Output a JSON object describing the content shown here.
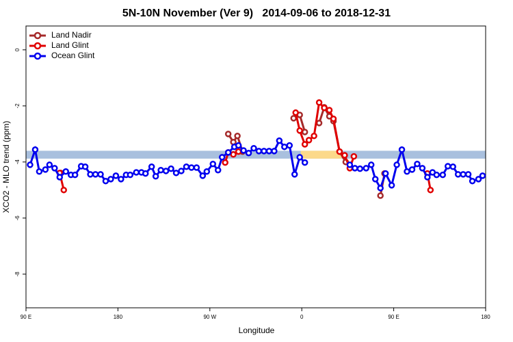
{
  "chart_data": {
    "type": "line",
    "title": "5N-10N November (Ver 9)   2014-09-06 to 2018-12-31",
    "x_label": "Longitude",
    "y_label": "XCO2 - MLO trend (ppm)",
    "xlim": [
      90,
      540
    ],
    "xticks": [
      {
        "value": 90,
        "label": "90 E"
      },
      {
        "value": 180,
        "label": "180"
      },
      {
        "value": 270,
        "label": "90 W"
      },
      {
        "value": 360,
        "label": "0"
      },
      {
        "value": 450,
        "label": "90 E"
      },
      {
        "value": 540,
        "label": "180"
      }
    ],
    "ylim": [
      -9.2,
      0.85
    ],
    "yticks": [
      0,
      -2,
      -4,
      -6,
      -8
    ],
    "legend": "top-left",
    "band": {
      "ymin": -3.88,
      "ymax": -3.6,
      "color": "#a9c0de",
      "highlight_color": "#fcd98a",
      "highlight_x": [
        359,
        399
      ]
    },
    "series": [
      {
        "name": "Land Nadir",
        "color": "#a52a2a",
        "x": [
          124,
          null,
          288,
          293,
          297,
          302,
          null,
          352,
          358,
          363,
          null,
          377,
          382,
          387,
          391,
          397,
          403,
          null,
          437,
          441
        ],
        "values": [
          -4.39,
          null,
          -3.0,
          -3.29,
          -3.07,
          -3.63,
          null,
          -2.44,
          -2.32,
          -2.93,
          null,
          -2.61,
          -2.05,
          -2.37,
          -2.54,
          -3.63,
          -4.0,
          null,
          -5.2,
          -4.41
        ]
      },
      {
        "name": "Land Glint",
        "color": "#e00000",
        "x": [
          123,
          127,
          null,
          285,
          288,
          293,
          298,
          null,
          354,
          358,
          363,
          367,
          372,
          377,
          382,
          387,
          391,
          397,
          402,
          407,
          411,
          null,
          483,
          486
        ],
        "values": [
          -4.39,
          -5.0,
          null,
          -4.02,
          -3.66,
          -3.73,
          -3.63,
          null,
          -2.24,
          -2.88,
          -3.37,
          -3.22,
          -3.07,
          -1.88,
          -2.07,
          -2.15,
          -2.46,
          -3.63,
          -3.76,
          -4.22,
          -3.8,
          null,
          -4.41,
          -5.0
        ]
      },
      {
        "name": "Ocean Glint",
        "color": "#0000ee",
        "x": [
          94,
          99,
          103,
          109,
          113,
          118,
          123,
          129,
          134,
          138,
          144,
          148,
          153,
          158,
          163,
          168,
          173,
          178,
          183,
          188,
          192,
          198,
          203,
          207,
          213,
          217,
          222,
          227,
          232,
          237,
          242,
          247,
          252,
          257,
          263,
          267,
          273,
          278,
          282,
          288,
          294,
          298,
          303,
          308,
          313,
          318,
          323,
          328,
          333,
          338,
          343,
          348,
          353,
          358,
          363,
          null,
          407,
          412,
          417,
          423,
          428,
          432,
          437,
          442,
          448,
          453,
          458,
          463,
          468,
          473,
          478,
          483,
          488,
          492,
          498,
          503,
          508,
          513,
          518,
          523,
          527,
          533,
          537
        ],
        "values": [
          -4.1,
          -3.56,
          -4.34,
          -4.27,
          -4.1,
          -4.22,
          -4.54,
          -4.34,
          -4.46,
          -4.46,
          -4.15,
          -4.17,
          -4.44,
          -4.44,
          -4.44,
          -4.68,
          -4.61,
          -4.49,
          -4.61,
          -4.46,
          -4.46,
          -4.37,
          -4.37,
          -4.41,
          -4.17,
          -4.51,
          -4.29,
          -4.32,
          -4.24,
          -4.39,
          -4.32,
          -4.17,
          -4.2,
          -4.2,
          -4.49,
          -4.34,
          -4.07,
          -4.29,
          -3.83,
          -3.66,
          -3.46,
          -3.41,
          -3.59,
          -3.68,
          -3.51,
          -3.61,
          -3.61,
          -3.61,
          -3.61,
          -3.24,
          -3.46,
          -3.41,
          -4.44,
          -3.83,
          -4.02,
          null,
          -4.1,
          -4.22,
          -4.24,
          -4.22,
          -4.1,
          -4.61,
          -4.93,
          -4.41,
          -4.83,
          -4.1,
          -3.56,
          -4.34,
          -4.27,
          -4.07,
          -4.22,
          -4.54,
          -4.37,
          -4.46,
          -4.46,
          -4.15,
          -4.17,
          -4.44,
          -4.44,
          -4.44,
          -4.68,
          -4.61,
          -4.49
        ]
      }
    ]
  }
}
